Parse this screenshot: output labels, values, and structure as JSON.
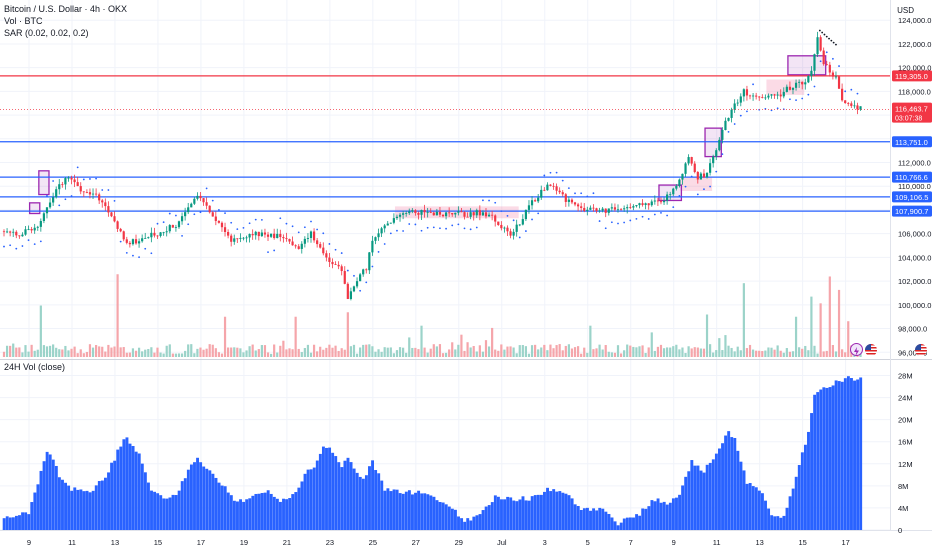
{
  "header": {
    "title": "Bitcoin / U.S. Dollar · 4h · OKX",
    "vol_label": "Vol · BTC",
    "sar_label": "SAR (0.02, 0.02, 0.2)",
    "currency": "USD"
  },
  "lower_pane": {
    "title": "24H Vol (close)"
  },
  "chart_data": [
    {
      "type": "candlestick",
      "title": "Bitcoin / U.S. Dollar · 4h · OKX",
      "ylabel": "USD",
      "ylim": [
        95600,
        125200
      ],
      "y_ticks": [
        96000,
        98000,
        100000,
        102000,
        104000,
        106000,
        108000,
        110000,
        112000,
        114000,
        116000,
        118000,
        120000,
        122000,
        124000
      ],
      "y_tick_labels": [
        "96,000.0",
        "98,000.0",
        "100,000.0",
        "102,000.0",
        "104,000.0",
        "106,000.0",
        "108,000.0",
        "110,000.0",
        "112,000.0",
        "114,000.0",
        "116,000.0",
        "118,000.0",
        "120,000.0",
        "122,000.0",
        "124,000.0"
      ],
      "x_tick_labels": [
        "9",
        "11",
        "13",
        "15",
        "17",
        "19",
        "21",
        "23",
        "25",
        "27",
        "29",
        "Jul",
        "3",
        "5",
        "7",
        "9",
        "11",
        "13",
        "15",
        "17"
      ],
      "levels": [
        {
          "value": 119305.0,
          "label": "119,305.0",
          "color": "#f23645"
        },
        {
          "value": 113751.0,
          "label": "113,751.0",
          "color": "#2962ff"
        },
        {
          "value": 110766.6,
          "label": "110,766.6",
          "color": "#2962ff"
        },
        {
          "value": 109106.5,
          "label": "109,106.5",
          "color": "#2962ff"
        },
        {
          "value": 107900.7,
          "label": "107,900.7",
          "color": "#2962ff"
        }
      ],
      "last_price": {
        "value": 116463.7,
        "label": "116,463.7",
        "countdown": "03:07:38",
        "color": "#f23645"
      },
      "key_points": [
        [
          0,
          106200
        ],
        [
          5,
          106000
        ],
        [
          10,
          106400
        ],
        [
          13,
          107500
        ],
        [
          15,
          108600
        ],
        [
          17,
          109700
        ],
        [
          20,
          110600
        ],
        [
          23,
          110200
        ],
        [
          26,
          109600
        ],
        [
          30,
          109400
        ],
        [
          33,
          108200
        ],
        [
          36,
          107000
        ],
        [
          40,
          105200
        ],
        [
          44,
          105400
        ],
        [
          48,
          105900
        ],
        [
          52,
          106200
        ],
        [
          56,
          106800
        ],
        [
          60,
          108200
        ],
        [
          63,
          109100
        ],
        [
          66,
          108300
        ],
        [
          70,
          106800
        ],
        [
          73,
          105600
        ],
        [
          77,
          105400
        ],
        [
          81,
          106000
        ],
        [
          85,
          105800
        ],
        [
          89,
          105900
        ],
        [
          93,
          105300
        ],
        [
          96,
          104600
        ],
        [
          100,
          106100
        ],
        [
          103,
          104800
        ],
        [
          106,
          103500
        ],
        [
          108,
          103600
        ],
        [
          110,
          102700
        ],
        [
          112,
          100600
        ],
        [
          114,
          101800
        ],
        [
          116,
          102500
        ],
        [
          118,
          103000
        ],
        [
          119,
          104400
        ],
        [
          121,
          105900
        ],
        [
          124,
          106600
        ],
        [
          128,
          107300
        ],
        [
          131,
          107700
        ],
        [
          134,
          107800
        ],
        [
          138,
          107700
        ],
        [
          142,
          107600
        ],
        [
          146,
          107800
        ],
        [
          150,
          107500
        ],
        [
          154,
          107800
        ],
        [
          158,
          107500
        ],
        [
          162,
          106700
        ],
        [
          165,
          106000
        ],
        [
          168,
          106900
        ],
        [
          171,
          108500
        ],
        [
          174,
          109200
        ],
        [
          177,
          110200
        ],
        [
          180,
          109700
        ],
        [
          183,
          108900
        ],
        [
          186,
          108300
        ],
        [
          190,
          108000
        ],
        [
          194,
          107900
        ],
        [
          198,
          108000
        ],
        [
          202,
          108100
        ],
        [
          206,
          108300
        ],
        [
          210,
          108400
        ],
        [
          214,
          108800
        ],
        [
          217,
          109300
        ],
        [
          220,
          110500
        ],
        [
          223,
          112300
        ],
        [
          226,
          110800
        ],
        [
          229,
          111100
        ],
        [
          232,
          113000
        ],
        [
          235,
          115300
        ],
        [
          238,
          116900
        ],
        [
          241,
          118000
        ],
        [
          244,
          117700
        ],
        [
          248,
          117700
        ],
        [
          252,
          117500
        ],
        [
          255,
          118200
        ],
        [
          258,
          118500
        ],
        [
          261,
          119000
        ],
        [
          263,
          119600
        ],
        [
          265,
          122500
        ],
        [
          267,
          120300
        ],
        [
          269,
          119700
        ],
        [
          271,
          119200
        ],
        [
          273,
          117400
        ],
        [
          275,
          117000
        ],
        [
          277,
          116700
        ],
        [
          279,
          116500
        ]
      ],
      "volume": {
        "label": "Vol · BTC",
        "max": 19000,
        "spikes": [
          [
            12,
            11500
          ],
          [
            37,
            18500
          ],
          [
            72,
            9000
          ],
          [
            95,
            9000
          ],
          [
            112,
            10000
          ],
          [
            136,
            7000
          ],
          [
            159,
            6500
          ],
          [
            191,
            7000
          ],
          [
            211,
            5500
          ],
          [
            229,
            9500
          ],
          [
            241,
            16500
          ],
          [
            258,
            9000
          ],
          [
            263,
            13500
          ],
          [
            266,
            12000
          ],
          [
            269,
            18000
          ],
          [
            272,
            15000
          ],
          [
            275,
            8000
          ]
        ]
      },
      "sar_side": [
        [
          0,
          "below"
        ],
        [
          13,
          "above"
        ],
        [
          18,
          "below"
        ],
        [
          23,
          "above"
        ],
        [
          38,
          "below"
        ],
        [
          50,
          "above"
        ],
        [
          58,
          "below"
        ],
        [
          66,
          "above"
        ],
        [
          86,
          "below"
        ],
        [
          89,
          "above"
        ],
        [
          115,
          "below"
        ],
        [
          155,
          "above"
        ],
        [
          168,
          "below"
        ],
        [
          176,
          "above"
        ],
        [
          193,
          "below"
        ],
        [
          244,
          "above"
        ],
        [
          246,
          "below"
        ],
        [
          268,
          "above"
        ]
      ],
      "highlight_boxes": [
        {
          "from": 9,
          "to": 11,
          "low": 107700,
          "high": 108600,
          "color": "#9c27b0"
        },
        {
          "from": 12,
          "to": 14,
          "low": 109300,
          "high": 111300,
          "color": "#9c27b0"
        },
        {
          "from": 128,
          "to": 167,
          "low": 107300,
          "high": 108300,
          "color": "#e91e63"
        },
        {
          "from": 221,
          "to": 230,
          "low": 109600,
          "high": 110800,
          "color": "#e91e63"
        },
        {
          "from": 214,
          "to": 220,
          "low": 108800,
          "high": 110100,
          "color": "#9c27b0"
        },
        {
          "from": 229,
          "to": 233,
          "low": 112500,
          "high": 114900,
          "color": "#9c27b0"
        },
        {
          "from": 249,
          "to": 260,
          "low": 117700,
          "high": 119000,
          "color": "#e91e63"
        },
        {
          "from": 256,
          "to": 267,
          "low": 119400,
          "high": 121000,
          "color": "#9c27b0"
        }
      ]
    },
    {
      "type": "bar",
      "title": "24H Vol (close)",
      "ylim": [
        0,
        29000000
      ],
      "y_ticks": [
        0,
        4000000,
        8000000,
        12000000,
        16000000,
        20000000,
        24000000,
        28000000
      ],
      "y_tick_labels": [
        "0",
        "4M",
        "8M",
        "12M",
        "16M",
        "20M",
        "24M",
        "28M"
      ],
      "key_points": [
        [
          0,
          2200000
        ],
        [
          8,
          3000000
        ],
        [
          12,
          10500000
        ],
        [
          14,
          14500000
        ],
        [
          16,
          13000000
        ],
        [
          18,
          9500000
        ],
        [
          22,
          7500000
        ],
        [
          28,
          6500000
        ],
        [
          34,
          10500000
        ],
        [
          38,
          15500000
        ],
        [
          40,
          16500000
        ],
        [
          44,
          13500000
        ],
        [
          48,
          7000000
        ],
        [
          53,
          5500000
        ],
        [
          56,
          6500000
        ],
        [
          61,
          11500000
        ],
        [
          63,
          13500000
        ],
        [
          66,
          11000000
        ],
        [
          70,
          9000000
        ],
        [
          76,
          5000000
        ],
        [
          80,
          6000000
        ],
        [
          86,
          7000000
        ],
        [
          90,
          5000000
        ],
        [
          94,
          6200000
        ],
        [
          98,
          10000000
        ],
        [
          101,
          11500000
        ],
        [
          104,
          15000000
        ],
        [
          106,
          14500000
        ],
        [
          110,
          11500000
        ],
        [
          112,
          13500000
        ],
        [
          114,
          11000000
        ],
        [
          117,
          9000000
        ],
        [
          120,
          12500000
        ],
        [
          124,
          7500000
        ],
        [
          130,
          7000000
        ],
        [
          138,
          6500000
        ],
        [
          146,
          4000000
        ],
        [
          150,
          1500000
        ],
        [
          155,
          3000000
        ],
        [
          160,
          6000000
        ],
        [
          165,
          5500000
        ],
        [
          172,
          5800000
        ],
        [
          178,
          7500000
        ],
        [
          183,
          6500000
        ],
        [
          188,
          3500000
        ],
        [
          195,
          4000000
        ],
        [
          200,
          1200000
        ],
        [
          206,
          2500000
        ],
        [
          212,
          5500000
        ],
        [
          216,
          4800000
        ],
        [
          220,
          6500000
        ],
        [
          224,
          12500000
        ],
        [
          228,
          10500000
        ],
        [
          232,
          14000000
        ],
        [
          236,
          18000000
        ],
        [
          238,
          16500000
        ],
        [
          242,
          8500000
        ],
        [
          246,
          7500000
        ],
        [
          250,
          2500000
        ],
        [
          254,
          2200000
        ],
        [
          258,
          9500000
        ],
        [
          262,
          18000000
        ],
        [
          264,
          24500000
        ],
        [
          268,
          26000000
        ],
        [
          272,
          27000000
        ],
        [
          275,
          27500000
        ]
      ]
    }
  ],
  "colors": {
    "up": "#089981",
    "down": "#f23645",
    "vol_up": "#9bd3c9",
    "vol_down": "#f5a5aa",
    "sar": "#2962ff",
    "level_blue": "#2962ff",
    "level_red": "#f23645",
    "box_purple": "#9c27b0",
    "box_pink": "#e91e63",
    "lower_bar": "#2962ff",
    "grid": "#f0f3fa",
    "axis_text": "#131722"
  },
  "icons": [
    "lightning-icon",
    "us-flag-icon",
    "us-flag-icon"
  ]
}
